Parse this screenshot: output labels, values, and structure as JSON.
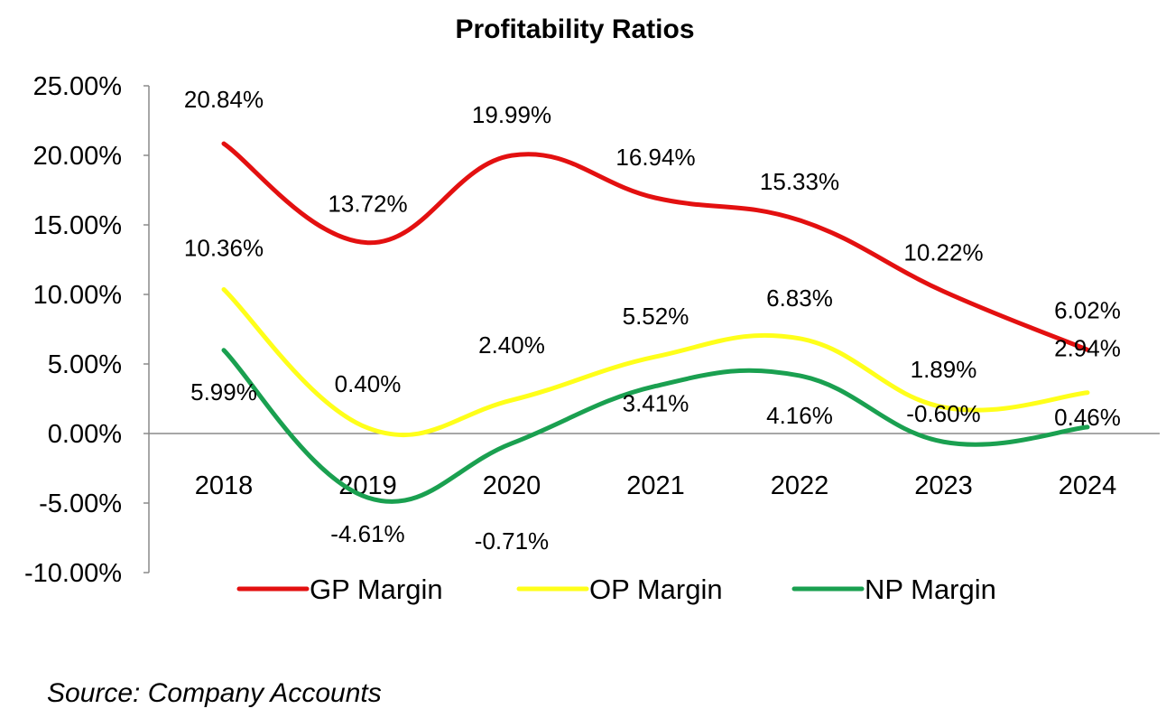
{
  "chart_data": {
    "type": "line",
    "title": "Profitability Ratios",
    "categories": [
      "2018",
      "2019",
      "2020",
      "2021",
      "2022",
      "2023",
      "2024"
    ],
    "ylim": [
      -10,
      25
    ],
    "yticks": [
      25,
      20,
      15,
      10,
      5,
      0,
      -5,
      -10
    ],
    "ytick_labels": [
      "25.00%",
      "20.00%",
      "15.00%",
      "10.00%",
      "5.00%",
      "0.00%",
      "-5.00%",
      "-10.00%"
    ],
    "xlabel": "",
    "ylabel": "",
    "grid": false,
    "smooth": true,
    "legend_position": "bottom",
    "series": [
      {
        "name": "GP Margin",
        "color": "#e31010",
        "values": [
          20.84,
          13.72,
          19.99,
          16.94,
          15.33,
          10.22,
          6.02
        ],
        "labels": [
          "20.84%",
          "13.72%",
          "19.99%",
          "16.94%",
          "15.33%",
          "10.22%",
          "6.02%"
        ]
      },
      {
        "name": "OP Margin",
        "color": "#ffff1a",
        "values": [
          10.36,
          0.4,
          2.4,
          5.52,
          6.83,
          1.89,
          2.94
        ],
        "labels": [
          "10.36%",
          "0.40%",
          "2.40%",
          "5.52%",
          "6.83%",
          "1.89%",
          "2.94%"
        ]
      },
      {
        "name": "NP Margin",
        "color": "#1aa050",
        "values": [
          5.99,
          -4.61,
          -0.71,
          3.41,
          4.16,
          -0.6,
          0.46
        ],
        "labels": [
          "5.99%",
          "-4.61%",
          "-0.71%",
          "3.41%",
          "4.16%",
          "-0.60%",
          "0.46%"
        ]
      }
    ]
  },
  "source_note": "Source: Company Accounts"
}
